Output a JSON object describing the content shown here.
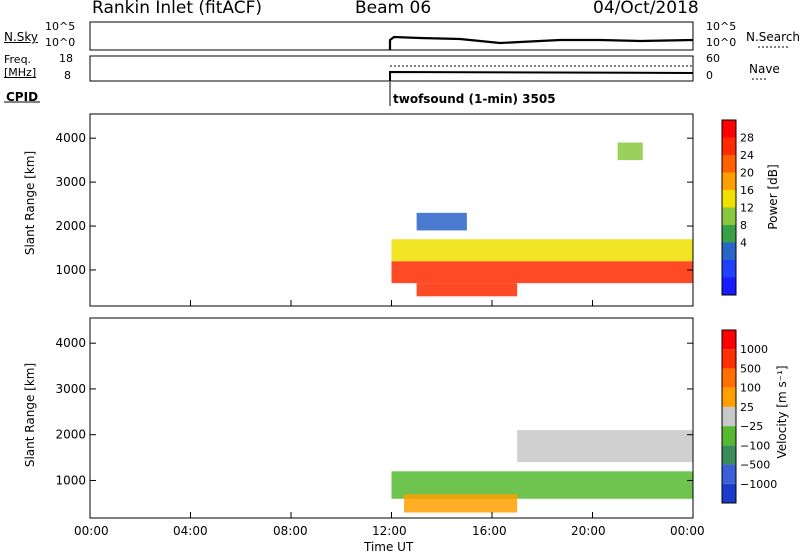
{
  "header": {
    "station": "Rankin Inlet (fitACF)",
    "beam": "Beam 06",
    "date": "04/Oct/2018"
  },
  "noise_panel": {
    "left_label": "N.Sky",
    "right_label": "N.Search",
    "left_ticks": [
      "10^5",
      "10^0"
    ],
    "right_ticks": [
      "10^5",
      "10^0"
    ]
  },
  "freq_panel": {
    "left_label_1": "Freq.",
    "left_label_2": "[MHz]",
    "right_label": "Nave",
    "left_ticks": [
      "18",
      "8"
    ],
    "right_ticks": [
      "60",
      "0"
    ]
  },
  "cpid": {
    "label": "CPID",
    "program": "twofsound (1-min) 3505"
  },
  "chart_data": [
    {
      "type": "heatmap",
      "title": "",
      "ylabel": "Slant Range [km]",
      "xlabel": "Time UT",
      "ylim": [
        180,
        4550
      ],
      "yticks": [
        1000,
        2000,
        3000,
        4000
      ],
      "colorbar": {
        "label": "Power [dB]",
        "range": [
          0,
          32
        ],
        "ticks": [
          "28",
          "24",
          "20",
          "16",
          "12",
          "8",
          "4"
        ],
        "colors": [
          "#1a1aff",
          "#2040ff",
          "#2a64c8",
          "#3aa048",
          "#88c840",
          "#f0e000",
          "#ffa000",
          "#ff6000",
          "#ff2a00",
          "#ff0000"
        ]
      },
      "regions": [
        {
          "range_km": [
            700,
            1200
          ],
          "time_h": [
            12.0,
            24.0
          ],
          "value_db": 28
        },
        {
          "range_km": [
            1200,
            1700
          ],
          "time_h": [
            12.0,
            24.0
          ],
          "value_db": 18
        },
        {
          "range_km": [
            400,
            700
          ],
          "time_h": [
            13.0,
            17.0
          ],
          "value_db": 26
        },
        {
          "range_km": [
            1900,
            2300
          ],
          "time_h": [
            13.0,
            15.0
          ],
          "value_db": 8
        },
        {
          "range_km": [
            3500,
            3900
          ],
          "time_h": [
            21.0,
            22.0
          ],
          "value_db": 14
        }
      ]
    },
    {
      "type": "heatmap",
      "title": "",
      "ylabel": "Slant Range [km]",
      "xlabel": "Time UT",
      "ylim": [
        180,
        4550
      ],
      "yticks": [
        1000,
        2000,
        3000,
        4000
      ],
      "colorbar": {
        "label": "Velocity [m s⁻¹]",
        "range": [
          -1200,
          1200
        ],
        "ticks": [
          "1000",
          "500",
          "100",
          "25",
          "−25",
          "−100",
          "−500",
          "−1000"
        ],
        "colors": [
          "#1a3ccc",
          "#3a60d8",
          "#3a8c5a",
          "#56b830",
          "#c8c8c8",
          "#ffa000",
          "#ff7000",
          "#ff3000",
          "#ff0000"
        ]
      },
      "regions": [
        {
          "range_km": [
            600,
            1200
          ],
          "time_h": [
            12.0,
            24.0
          ],
          "value_ms": -300
        },
        {
          "range_km": [
            1400,
            2100
          ],
          "time_h": [
            17.0,
            24.0
          ],
          "value_ms": 0
        },
        {
          "range_km": [
            300,
            700
          ],
          "time_h": [
            12.5,
            17.0
          ],
          "value_ms": 150
        }
      ]
    }
  ],
  "xaxis": {
    "ticks": [
      "00:00",
      "04:00",
      "08:00",
      "12:00",
      "16:00",
      "20:00",
      "00:00"
    ],
    "label": "Time UT"
  }
}
